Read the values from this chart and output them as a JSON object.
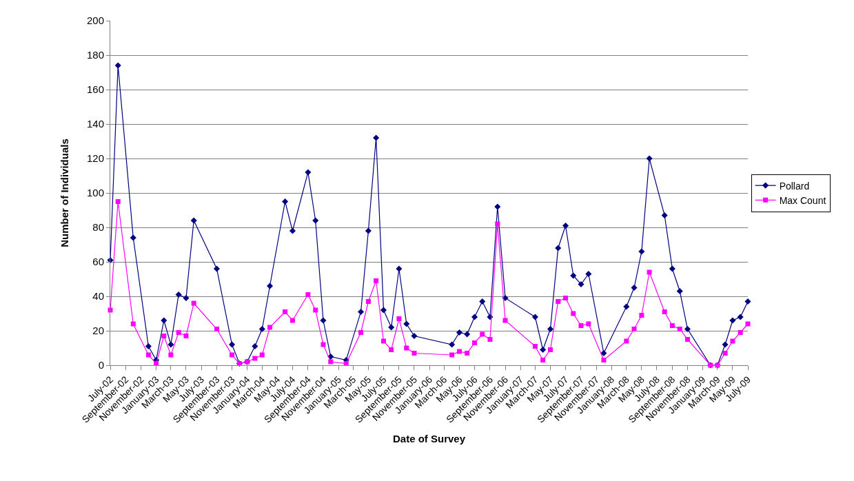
{
  "chart_data": {
    "type": "line",
    "xlabel": "Date of Survey",
    "ylabel": "Number of Individuals",
    "x": [
      "2002-07",
      "2002-08",
      "2002-10",
      "2002-12",
      "2003-01",
      "2003-02",
      "2003-03",
      "2003-04",
      "2003-05",
      "2003-06",
      "2003-09",
      "2003-11",
      "2003-12",
      "2004-01",
      "2004-02",
      "2004-03",
      "2004-04",
      "2004-06",
      "2004-07",
      "2004-09",
      "2004-10",
      "2004-11",
      "2004-12",
      "2005-02",
      "2005-04",
      "2005-05",
      "2005-06",
      "2005-07",
      "2005-08",
      "2005-09",
      "2005-10",
      "2005-11",
      "2006-04",
      "2006-05",
      "2006-06",
      "2006-07",
      "2006-08",
      "2006-09",
      "2006-10",
      "2006-11",
      "2007-03",
      "2007-04",
      "2007-05",
      "2007-06",
      "2007-07",
      "2007-08",
      "2007-09",
      "2007-10",
      "2007-12",
      "2008-03",
      "2008-04",
      "2008-05",
      "2008-06",
      "2008-08",
      "2008-09",
      "2008-10",
      "2008-11",
      "2009-02",
      "2009-03",
      "2009-04",
      "2009-05",
      "2009-06",
      "2009-07"
    ],
    "series": [
      {
        "name": "Pollard",
        "color": "#000080",
        "marker": "diamond",
        "values": [
          61,
          174,
          74,
          11,
          3,
          26,
          12,
          41,
          39,
          84,
          56,
          12,
          1,
          2,
          11,
          21,
          46,
          95,
          78,
          112,
          84,
          26,
          5,
          3,
          31,
          78,
          132,
          32,
          22,
          56,
          24,
          17,
          12,
          19,
          18,
          28,
          37,
          28,
          92,
          39,
          28,
          9,
          21,
          68,
          81,
          52,
          47,
          53,
          7,
          34,
          45,
          66,
          120,
          87,
          56,
          43,
          21,
          0,
          0,
          12,
          26,
          28,
          37
        ]
      },
      {
        "name": "Max Count",
        "color": "#ff00ff",
        "marker": "square",
        "values": [
          32,
          95,
          24,
          6,
          1,
          17,
          6,
          19,
          17,
          36,
          21,
          6,
          1,
          2,
          4,
          6,
          22,
          31,
          26,
          41,
          32,
          12,
          2,
          1,
          19,
          37,
          49,
          14,
          9,
          27,
          10,
          7,
          6,
          8,
          7,
          13,
          18,
          15,
          82,
          26,
          11,
          3,
          9,
          37,
          39,
          30,
          23,
          24,
          3,
          14,
          21,
          29,
          54,
          31,
          23,
          21,
          15,
          0,
          0,
          7,
          14,
          19,
          24
        ]
      }
    ],
    "xlim": [
      "2002-07",
      "2009-07"
    ],
    "xticks": [
      {
        "value": "2002-07",
        "label": "July-02"
      },
      {
        "value": "2002-09",
        "label": "September-02"
      },
      {
        "value": "2002-11",
        "label": "November-02"
      },
      {
        "value": "2003-01",
        "label": "January-03"
      },
      {
        "value": "2003-03",
        "label": "March-03"
      },
      {
        "value": "2003-05",
        "label": "May-03"
      },
      {
        "value": "2003-07",
        "label": "July-03"
      },
      {
        "value": "2003-09",
        "label": "September-03"
      },
      {
        "value": "2003-11",
        "label": "November-03"
      },
      {
        "value": "2004-01",
        "label": "January-04"
      },
      {
        "value": "2004-03",
        "label": "March-04"
      },
      {
        "value": "2004-05",
        "label": "May-04"
      },
      {
        "value": "2004-07",
        "label": "July-04"
      },
      {
        "value": "2004-09",
        "label": "September-04"
      },
      {
        "value": "2004-11",
        "label": "November-04"
      },
      {
        "value": "2005-01",
        "label": "January-05"
      },
      {
        "value": "2005-03",
        "label": "March-05"
      },
      {
        "value": "2005-05",
        "label": "May-05"
      },
      {
        "value": "2005-07",
        "label": "July-05"
      },
      {
        "value": "2005-09",
        "label": "September-05"
      },
      {
        "value": "2005-11",
        "label": "November-05"
      },
      {
        "value": "2006-01",
        "label": "January-06"
      },
      {
        "value": "2006-03",
        "label": "March-06"
      },
      {
        "value": "2006-05",
        "label": "May-06"
      },
      {
        "value": "2006-07",
        "label": "July-06"
      },
      {
        "value": "2006-09",
        "label": "September-06"
      },
      {
        "value": "2006-11",
        "label": "November-06"
      },
      {
        "value": "2007-01",
        "label": "January-07"
      },
      {
        "value": "2007-03",
        "label": "March-07"
      },
      {
        "value": "2007-05",
        "label": "May-07"
      },
      {
        "value": "2007-07",
        "label": "July-07"
      },
      {
        "value": "2007-09",
        "label": "September-07"
      },
      {
        "value": "2007-11",
        "label": "November-07"
      },
      {
        "value": "2008-01",
        "label": "January-08"
      },
      {
        "value": "2008-03",
        "label": "March-08"
      },
      {
        "value": "2008-05",
        "label": "May-08"
      },
      {
        "value": "2008-07",
        "label": "July-08"
      },
      {
        "value": "2008-09",
        "label": "September-08"
      },
      {
        "value": "2008-11",
        "label": "November-08"
      },
      {
        "value": "2009-01",
        "label": "January-09"
      },
      {
        "value": "2009-03",
        "label": "March-09"
      },
      {
        "value": "2009-05",
        "label": "May-09"
      },
      {
        "value": "2009-07",
        "label": "July-09"
      }
    ],
    "ylim": [
      0,
      200
    ],
    "yticks": [
      0,
      20,
      40,
      60,
      80,
      100,
      120,
      140,
      160,
      180,
      200
    ],
    "grid": "y",
    "legend": "right",
    "line_style": "solid"
  }
}
